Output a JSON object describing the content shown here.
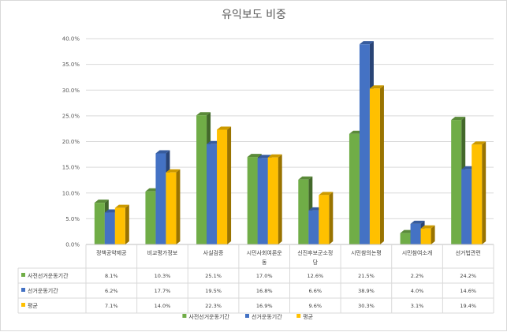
{
  "chart_data": {
    "type": "bar",
    "title": "유익보도 비중",
    "categories": [
      "정책공약제공",
      "비교평가정보",
      "사실검증",
      "시민사회여론운동",
      "신진후보군소정당",
      "시민참의논평",
      "시민참여소개",
      "선거법관련"
    ],
    "category_lines": [
      [
        "정책공약제공"
      ],
      [
        "비교평가정보"
      ],
      [
        "사실검증"
      ],
      [
        "시민사회여론운",
        "동"
      ],
      [
        "신진후보군소정",
        "당"
      ],
      [
        "시민참의논평"
      ],
      [
        "시민참여소개"
      ],
      [
        "선거법관련"
      ]
    ],
    "series": [
      {
        "name": "사전선거운동기간",
        "color": "#70AD47",
        "values": [
          8.1,
          10.3,
          25.1,
          17.0,
          12.6,
          21.5,
          2.2,
          24.2
        ],
        "labels": [
          "8.1%",
          "10.3%",
          "25.1%",
          "17.0%",
          "12.6%",
          "21.5%",
          "2.2%",
          "24.2%"
        ]
      },
      {
        "name": "선거운동기간",
        "color": "#4472C4",
        "values": [
          6.2,
          17.7,
          19.5,
          16.8,
          6.6,
          38.9,
          4.0,
          14.6
        ],
        "labels": [
          "6.2%",
          "17.7%",
          "19.5%",
          "16.8%",
          "6.6%",
          "38.9%",
          "4.0%",
          "14.6%"
        ]
      },
      {
        "name": "평균",
        "color": "#FFC000",
        "values": [
          7.1,
          14.0,
          22.3,
          16.9,
          9.6,
          30.3,
          3.1,
          19.4
        ],
        "labels": [
          "7.1%",
          "14.0%",
          "22.3%",
          "16.9%",
          "9.6%",
          "30.3%",
          "3.1%",
          "19.4%"
        ]
      }
    ],
    "yaxis": {
      "min": 0,
      "max": 40,
      "step": 5,
      "tick_labels": [
        "0.0%",
        "5.0%",
        "10.0%",
        "15.0%",
        "20.0%",
        "25.0%",
        "30.0%",
        "35.0%",
        "40.0%"
      ]
    },
    "grid": true,
    "legend": "bottom",
    "data_table": true,
    "bar_style": "3d"
  }
}
